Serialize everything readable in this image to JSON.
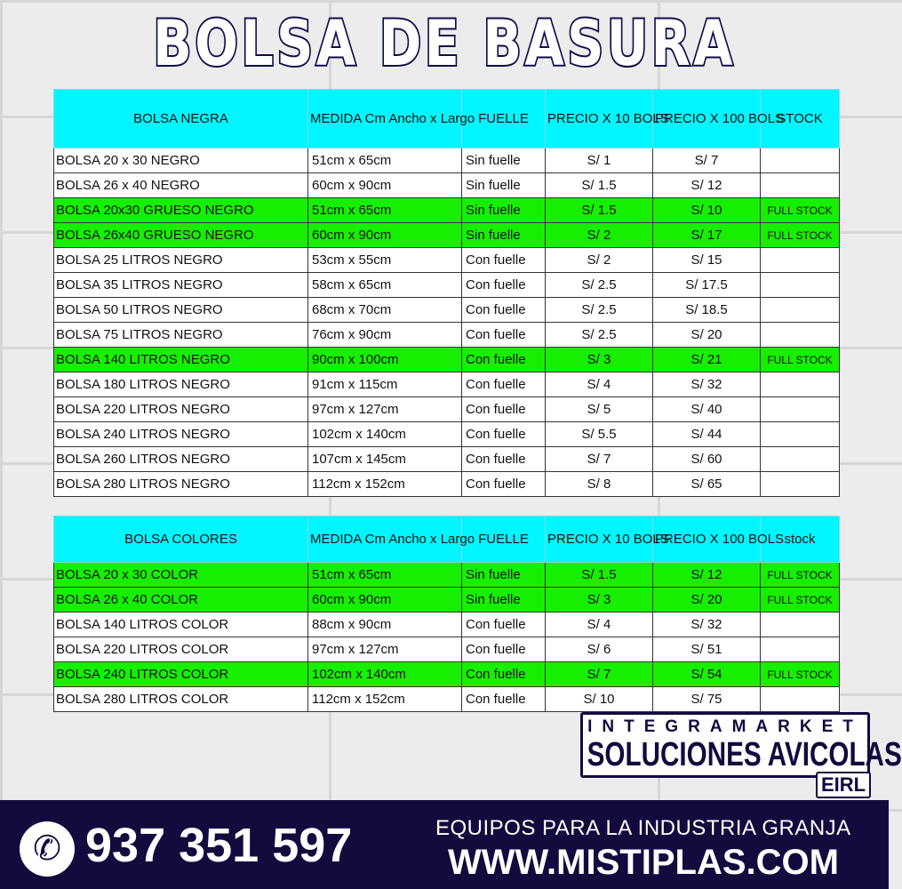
{
  "title": "BOLSA DE BASURA",
  "colors": {
    "header": "#00f6ff",
    "highlight": "#16f000",
    "footer": "#140a3e"
  },
  "table1": {
    "headers": [
      "BOLSA NEGRA",
      "MEDIDA Cm Ancho x Largo",
      "FUELLE",
      "PRECIO X 10 BOLS",
      "PRECIO X 100 BOLS",
      "STOCK"
    ],
    "rows": [
      {
        "name": "BOLSA 20 x 30  NEGRO",
        "size": "51cm x 65cm",
        "fuelle": "Sin fuelle",
        "p10": "S/ 1",
        "p100": "S/ 7",
        "stock": "",
        "hl": false
      },
      {
        "name": "BOLSA 26 x 40  NEGRO",
        "size": "60cm x 90cm",
        "fuelle": "Sin fuelle",
        "p10": "S/ 1.5",
        "p100": "S/ 12",
        "stock": "",
        "hl": false
      },
      {
        "name": "BOLSA 20x30 GRUESO  NEGRO",
        "size": "51cm x 65cm",
        "fuelle": "Sin fuelle",
        "p10": "S/ 1.5",
        "p100": "S/ 10",
        "stock": "FULL STOCK",
        "hl": true
      },
      {
        "name": "BOLSA 26x40 GRUESO  NEGRO",
        "size": "60cm x 90cm",
        "fuelle": "Sin fuelle",
        "p10": "S/ 2",
        "p100": "S/ 17",
        "stock": "FULL STOCK",
        "hl": true
      },
      {
        "name": "BOLSA 25 LITROS  NEGRO",
        "size": "53cm x 55cm",
        "fuelle": "Con fuelle",
        "p10": "S/ 2",
        "p100": "S/ 15",
        "stock": "",
        "hl": false
      },
      {
        "name": "BOLSA 35 LITROS  NEGRO",
        "size": "58cm x 65cm",
        "fuelle": "Con fuelle",
        "p10": "S/ 2.5",
        "p100": "S/ 17.5",
        "stock": "",
        "hl": false
      },
      {
        "name": "BOLSA 50 LITROS  NEGRO",
        "size": "68cm x 70cm",
        "fuelle": "Con fuelle",
        "p10": "S/ 2.5",
        "p100": "S/ 18.5",
        "stock": "",
        "hl": false
      },
      {
        "name": "BOLSA 75 LITROS  NEGRO",
        "size": "76cm x 90cm",
        "fuelle": "Con fuelle",
        "p10": "S/ 2.5",
        "p100": "S/ 20",
        "stock": "",
        "hl": false
      },
      {
        "name": "BOLSA 140 LITROS  NEGRO",
        "size": "90cm x 100cm",
        "fuelle": "Con fuelle",
        "p10": "S/ 3",
        "p100": "S/ 21",
        "stock": "FULL STOCK",
        "hl": true
      },
      {
        "name": "BOLSA 180 LITROS  NEGRO",
        "size": "91cm x 115cm",
        "fuelle": "Con fuelle",
        "p10": "S/ 4",
        "p100": "S/ 32",
        "stock": "",
        "hl": false
      },
      {
        "name": "BOLSA 220 LITROS  NEGRO",
        "size": "97cm x 127cm",
        "fuelle": "Con fuelle",
        "p10": "S/ 5",
        "p100": "S/ 40",
        "stock": "",
        "hl": false
      },
      {
        "name": "BOLSA 240 LITROS  NEGRO",
        "size": "102cm x 140cm",
        "fuelle": "Con fuelle",
        "p10": "S/ 5.5",
        "p100": "S/ 44",
        "stock": "",
        "hl": false
      },
      {
        "name": "BOLSA 260 LITROS  NEGRO",
        "size": "107cm x 145cm",
        "fuelle": "Con fuelle",
        "p10": "S/ 7",
        "p100": "S/ 60",
        "stock": "",
        "hl": false
      },
      {
        "name": "BOLSA 280 LITROS  NEGRO",
        "size": "112cm x 152cm",
        "fuelle": "Con fuelle",
        "p10": "S/ 8",
        "p100": "S/ 65",
        "stock": "",
        "hl": false
      }
    ]
  },
  "table2": {
    "headers": [
      "BOLSA COLORES",
      "MEDIDA Cm Ancho x Largo",
      "FUELLE",
      "PRECIO X 10 BOLS",
      "PRECIO X 100 BOLS",
      "stock"
    ],
    "rows": [
      {
        "name": "BOLSA 20 x 30  COLOR",
        "size": "51cm x 65cm",
        "fuelle": "Sin fuelle",
        "p10": "S/ 1.5",
        "p100": "S/ 12",
        "stock": "FULL STOCK",
        "hl": true
      },
      {
        "name": "BOLSA 26 x 40  COLOR",
        "size": "60cm x 90cm",
        "fuelle": "Sin fuelle",
        "p10": "S/ 3",
        "p100": "S/ 20",
        "stock": "FULL STOCK",
        "hl": true
      },
      {
        "name": "BOLSA 140 LITROS  COLOR",
        "size": "88cm x 90cm",
        "fuelle": "Con fuelle",
        "p10": "S/ 4",
        "p100": "S/ 32",
        "stock": "",
        "hl": false
      },
      {
        "name": "BOLSA 220 LITROS  COLOR",
        "size": "97cm x 127cm",
        "fuelle": "Con fuelle",
        "p10": "S/ 6",
        "p100": "S/ 51",
        "stock": "",
        "hl": false
      },
      {
        "name": "BOLSA 240 LITROS  COLOR",
        "size": "102cm x 140cm",
        "fuelle": "Con fuelle",
        "p10": "S/ 7",
        "p100": "S/ 54",
        "stock": "FULL STOCK",
        "hl": true
      },
      {
        "name": "BOLSA 280 LITROS  COLOR",
        "size": "112cm x 152cm",
        "fuelle": "Con fuelle",
        "p10": "S/ 10",
        "p100": "S/ 75",
        "stock": "",
        "hl": false
      }
    ]
  },
  "logo": {
    "line1": "INTEGRAMARKET",
    "line2": "SOLUCIONES AVICOLAS",
    "line3": "EIRL"
  },
  "footer": {
    "phone_icon": "phone-icon",
    "phone": "937 351 597",
    "tagline": "EQUIPOS PARA LA INDUSTRIA GRANJA",
    "website": "WWW.MISTIPLAS.COM"
  }
}
